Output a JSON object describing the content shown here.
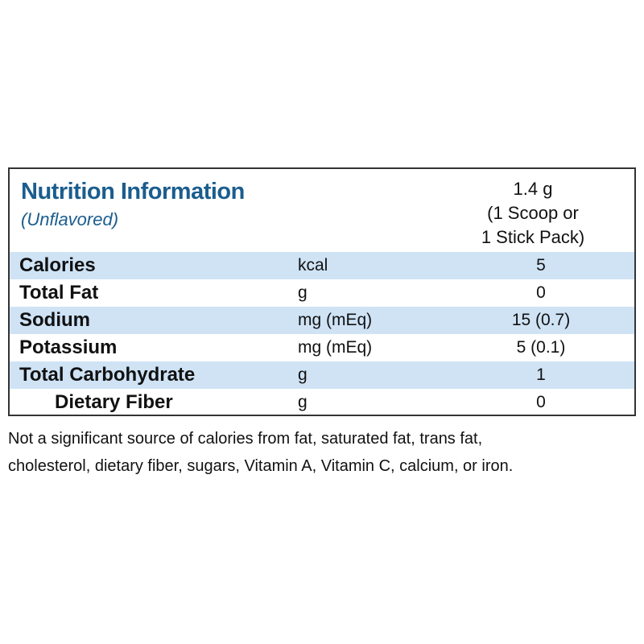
{
  "header": {
    "title": "Nutrition Information",
    "subtitle": "(Unflavored)",
    "serving": [
      "1.4 g",
      "(1 Scoop or",
      "1 Stick Pack)"
    ]
  },
  "table": {
    "rows": [
      [
        "Calories",
        "kcal",
        "5"
      ],
      [
        "Total Fat",
        "g",
        "0"
      ],
      [
        "Sodium",
        "mg (mEq)",
        "15 (0.7)"
      ],
      [
        "Potassium",
        "mg (mEq)",
        "5 (0.1)"
      ],
      [
        "Total Carbohydrate",
        "g",
        "1"
      ],
      [
        "Dietary Fiber",
        "g",
        "0"
      ]
    ]
  },
  "footnote": [
    "Not a significant source of calories from fat, saturated fat, trans fat,",
    "cholesterol, dietary fiber, sugars, Vitamin A, Vitamin C, calcium, or iron."
  ]
}
